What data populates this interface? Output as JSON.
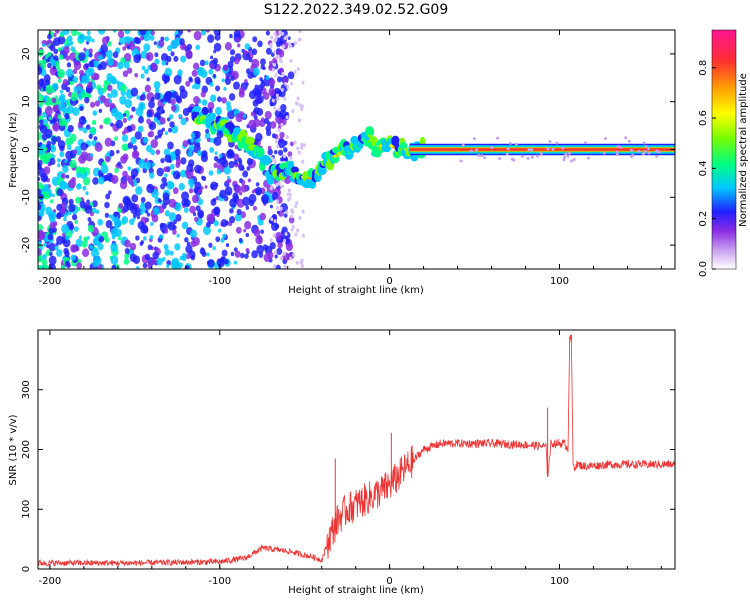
{
  "title": "S122.2022.349.02.52.G09",
  "chart_data": [
    {
      "type": "heatmap",
      "xlabel": "Height of straight line (km)",
      "ylabel": "Frequency (Hz)",
      "xlim": [
        -207,
        168
      ],
      "ylim": [
        -25,
        25
      ],
      "x_ticks": [
        -200,
        -100,
        0,
        100
      ],
      "y_ticks": [
        -20,
        -10,
        0,
        10,
        20
      ],
      "colorbar": {
        "label": "Normalized spectral amplitude",
        "range": [
          0,
          0.95
        ],
        "ticks": [
          0.0,
          0.2,
          0.4,
          0.6,
          0.8
        ],
        "colormap": [
          "#ffffff",
          "#c8a0f0",
          "#8a2be2",
          "#2020ff",
          "#00c8ff",
          "#00ff80",
          "#7cfc00",
          "#ffff00",
          "#ffa500",
          "#ff3030",
          "#ff1493"
        ]
      },
      "ridge": {
        "x": [
          -110,
          -100,
          -90,
          -80,
          -70,
          -60,
          -50,
          -45,
          -40,
          -30,
          -20,
          -12,
          -8,
          -4,
          0,
          5,
          10,
          20,
          168
        ],
        "y": [
          7,
          5,
          3,
          0,
          -5,
          -4,
          -6,
          -6,
          -3,
          -1,
          1,
          3,
          0,
          1,
          1,
          0,
          0,
          0,
          0
        ]
      },
      "grid": false
    },
    {
      "type": "line",
      "xlabel": "Height of straight line (km)",
      "ylabel": "SNR (10 * v/v)",
      "xlim": [
        -207,
        168
      ],
      "ylim": [
        0,
        400
      ],
      "x_ticks": [
        -200,
        -100,
        0,
        100
      ],
      "y_ticks": [
        0,
        100,
        200,
        300
      ],
      "color": "#ee3333",
      "series": [
        {
          "x": [
            -207,
            -150,
            -100,
            -85,
            -75,
            -60,
            -45,
            -40,
            -35,
            -30,
            -25,
            -15,
            -5,
            0,
            5,
            10,
            15,
            20,
            25,
            30,
            40,
            60,
            80,
            92,
            93,
            95,
            103,
            105,
            106,
            107,
            108,
            109,
            110,
            115,
            130,
            150,
            168
          ],
          "y": [
            10,
            10,
            12,
            18,
            35,
            30,
            20,
            15,
            55,
            85,
            100,
            115,
            130,
            140,
            155,
            170,
            185,
            200,
            205,
            210,
            210,
            210,
            208,
            205,
            155,
            210,
            210,
            200,
            390,
            380,
            175,
            170,
            175,
            172,
            175,
            175,
            175
          ]
        }
      ],
      "annotations": [
        {
          "x": -32,
          "y": 185
        },
        {
          "x": 1,
          "y": 228
        },
        {
          "x": 93,
          "y": 270
        },
        {
          "x": 107,
          "y": 392
        }
      ],
      "grid": false
    }
  ]
}
